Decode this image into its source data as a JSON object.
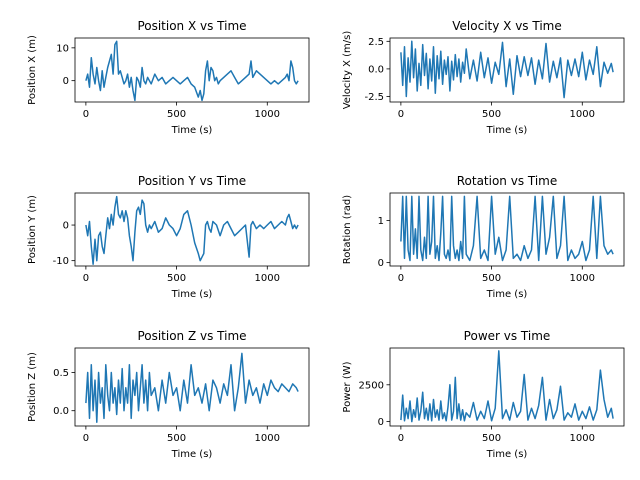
{
  "colors": {
    "line": "#1f77b4",
    "axes": "#000000",
    "background": "#ffffff"
  },
  "chart_data": [
    {
      "type": "line",
      "title": "Position X vs Time",
      "xlabel": "Time (s)",
      "ylabel": "Position X (m)",
      "xlim": [
        -60,
        1230
      ],
      "ylim": [
        -6.5,
        13
      ],
      "xticks": [
        0,
        500,
        1000
      ],
      "yticks": [
        0,
        10
      ],
      "grid": false,
      "legend": "none",
      "series": [
        {
          "x": [
            0,
            10,
            20,
            30,
            40,
            50,
            60,
            70,
            80,
            90,
            100,
            110,
            120,
            130,
            140,
            150,
            160,
            170,
            180,
            190,
            200,
            210,
            220,
            230,
            240,
            250,
            260,
            270,
            280,
            290,
            300,
            310,
            320,
            330,
            340,
            350,
            360,
            380,
            400,
            420,
            440,
            460,
            480,
            500,
            520,
            540,
            560,
            580,
            600,
            620,
            630,
            640,
            650,
            660,
            670,
            680,
            690,
            700,
            710,
            720,
            730,
            740,
            760,
            780,
            800,
            820,
            840,
            860,
            880,
            900,
            910,
            920,
            940,
            960,
            980,
            1000,
            1020,
            1040,
            1060,
            1080,
            1100,
            1110,
            1120,
            1130,
            1140,
            1150,
            1160,
            1170
          ],
          "y": [
            0,
            2,
            -2,
            7,
            2,
            -1,
            4,
            0,
            -3,
            3,
            -2,
            1,
            4,
            6,
            8,
            2,
            11,
            12,
            2,
            3,
            1,
            -1,
            0,
            2,
            -2,
            1,
            -3,
            -6,
            1,
            0,
            -2,
            4,
            0,
            -1,
            1,
            0,
            -1,
            2,
            0,
            1,
            -1,
            0,
            1,
            0,
            -1,
            0,
            1,
            -1,
            -2,
            -5,
            -3,
            -6,
            -4,
            3,
            6,
            0,
            4,
            3,
            0,
            1,
            -1,
            0,
            1,
            2,
            3,
            1,
            -1,
            0,
            1,
            2,
            6,
            1,
            3,
            2,
            1,
            0,
            -1,
            0,
            -1,
            0,
            1,
            2,
            0,
            6,
            4,
            0,
            -1,
            0
          ]
        }
      ]
    },
    {
      "type": "line",
      "title": "Velocity X vs Time",
      "xlabel": "Time (s)",
      "ylabel": "Velocity X (m/s)",
      "xlim": [
        -60,
        1230
      ],
      "ylim": [
        -3,
        2.8
      ],
      "xticks": [
        0,
        500,
        1000
      ],
      "yticks": [
        -2.5,
        0.0,
        2.5
      ],
      "grid": false,
      "legend": "none",
      "series": [
        {
          "x": [
            0,
            10,
            20,
            30,
            40,
            50,
            60,
            70,
            80,
            90,
            100,
            110,
            120,
            130,
            140,
            150,
            160,
            170,
            180,
            190,
            200,
            210,
            220,
            230,
            240,
            250,
            260,
            270,
            280,
            290,
            300,
            310,
            320,
            330,
            340,
            350,
            360,
            380,
            400,
            420,
            440,
            460,
            480,
            500,
            520,
            540,
            560,
            580,
            600,
            620,
            640,
            660,
            680,
            700,
            720,
            740,
            760,
            780,
            800,
            820,
            840,
            860,
            880,
            900,
            920,
            940,
            960,
            980,
            1000,
            1020,
            1040,
            1060,
            1080,
            1100,
            1120,
            1140,
            1160,
            1170
          ],
          "y": [
            1.5,
            -1.5,
            2.0,
            -2.5,
            1.0,
            -1.2,
            2.5,
            -0.8,
            1.8,
            -2.0,
            0.5,
            -1.5,
            2.2,
            -0.6,
            1.4,
            -1.8,
            0.9,
            -1.1,
            2.0,
            -2.2,
            1.2,
            -0.9,
            1.6,
            -1.4,
            0.8,
            -0.5,
            1.1,
            -2.0,
            0.7,
            -1.0,
            1.3,
            -0.7,
            0.9,
            -1.2,
            0.6,
            -0.4,
            1.8,
            -0.9,
            0.8,
            -1.1,
            1.5,
            -0.8,
            1.0,
            -1.3,
            0.6,
            -0.5,
            2.4,
            -1.6,
            0.9,
            -2.3,
            1.2,
            -0.7,
            1.1,
            -0.6,
            1.0,
            -1.4,
            0.8,
            -0.9,
            2.3,
            -1.2,
            0.7,
            -0.8,
            1.0,
            -2.6,
            0.8,
            -0.6,
            0.9,
            -0.7,
            1.5,
            -1.0,
            0.8,
            -0.5,
            2.0,
            -1.6,
            0.6,
            -0.4,
            0.5,
            -0.3
          ]
        }
      ]
    },
    {
      "type": "line",
      "title": "Position Y vs Time",
      "xlabel": "Time (s)",
      "ylabel": "Position Y (m)",
      "xlim": [
        -60,
        1230
      ],
      "ylim": [
        -11.5,
        9
      ],
      "xticks": [
        0,
        500,
        1000
      ],
      "yticks": [
        -10,
        0
      ],
      "grid": false,
      "legend": "none",
      "series": [
        {
          "x": [
            0,
            10,
            20,
            30,
            40,
            50,
            60,
            70,
            80,
            90,
            100,
            110,
            120,
            130,
            140,
            150,
            160,
            170,
            180,
            190,
            200,
            210,
            220,
            230,
            240,
            250,
            260,
            270,
            280,
            290,
            300,
            310,
            320,
            330,
            340,
            350,
            360,
            380,
            400,
            420,
            440,
            460,
            480,
            500,
            520,
            540,
            560,
            580,
            600,
            620,
            630,
            640,
            650,
            660,
            670,
            680,
            690,
            700,
            720,
            740,
            760,
            780,
            800,
            820,
            840,
            860,
            880,
            900,
            910,
            920,
            940,
            960,
            980,
            1000,
            1020,
            1040,
            1060,
            1080,
            1100,
            1110,
            1120,
            1130,
            1140,
            1150,
            1160,
            1170
          ],
          "y": [
            0,
            -3,
            1,
            -6,
            -11,
            -4,
            -10,
            -3,
            -2,
            -6,
            -8,
            -3,
            2,
            -1,
            3,
            0,
            5,
            8,
            3,
            2,
            4,
            1,
            4,
            2,
            -3,
            -6,
            -10,
            -2,
            4,
            5,
            3,
            7,
            6,
            0,
            -2,
            0,
            -1,
            1,
            -2,
            -1,
            2,
            0,
            -1,
            -3,
            -1,
            3,
            4,
            0,
            -5,
            -8,
            -10,
            -9,
            -8,
            0,
            1,
            -1,
            -2,
            1,
            0,
            -3,
            0,
            1,
            -1,
            -3,
            -2,
            -1,
            0,
            -9,
            0,
            1,
            -1,
            0,
            -1,
            0,
            1,
            -1,
            0,
            1,
            0,
            2,
            3,
            1,
            -1,
            0,
            -1,
            0
          ]
        }
      ]
    },
    {
      "type": "line",
      "title": "Rotation vs Time",
      "xlabel": "Time (s)",
      "ylabel": "Rotation (rad)",
      "xlim": [
        -60,
        1230
      ],
      "ylim": [
        -0.08,
        1.65
      ],
      "xticks": [
        0,
        500,
        1000
      ],
      "yticks": [
        0,
        1
      ],
      "grid": false,
      "legend": "none",
      "series": [
        {
          "x": [
            0,
            10,
            20,
            30,
            40,
            50,
            60,
            70,
            80,
            90,
            100,
            110,
            120,
            130,
            140,
            150,
            160,
            170,
            180,
            190,
            200,
            210,
            220,
            230,
            240,
            250,
            260,
            270,
            280,
            290,
            300,
            310,
            320,
            330,
            340,
            350,
            360,
            380,
            400,
            420,
            440,
            460,
            480,
            500,
            520,
            540,
            560,
            580,
            600,
            620,
            640,
            660,
            680,
            700,
            720,
            740,
            760,
            780,
            800,
            820,
            840,
            860,
            880,
            900,
            920,
            940,
            960,
            980,
            1000,
            1020,
            1040,
            1060,
            1080,
            1100,
            1120,
            1140,
            1160,
            1170
          ],
          "y": [
            0.5,
            1.57,
            0.1,
            1.57,
            0.3,
            0.05,
            1.57,
            0.2,
            0.8,
            0.1,
            1.57,
            0.3,
            0.05,
            0.6,
            0.1,
            1.57,
            0.2,
            0.5,
            1.57,
            0.1,
            0.4,
            0.05,
            0.7,
            1.57,
            0.2,
            0.1,
            0.3,
            0.05,
            1.57,
            0.4,
            0.1,
            0.3,
            0.05,
            0.5,
            0.1,
            1.57,
            0.2,
            0.05,
            0.4,
            1.57,
            0.1,
            0.3,
            0.05,
            1.57,
            0.2,
            0.6,
            0.05,
            0.3,
            1.57,
            0.1,
            0.2,
            0.05,
            0.4,
            0.1,
            0.3,
            1.57,
            0.05,
            1.57,
            0.2,
            0.6,
            1.57,
            0.1,
            0.4,
            1.57,
            0.05,
            0.3,
            0.1,
            0.2,
            0.5,
            0.05,
            0.3,
            1.57,
            0.1,
            1.57,
            0.4,
            0.2,
            0.3,
            0.2
          ]
        }
      ]
    },
    {
      "type": "line",
      "title": "Position Z vs Time",
      "xlabel": "Time (s)",
      "ylabel": "Position Z (m)",
      "xlim": [
        -60,
        1230
      ],
      "ylim": [
        -0.2,
        0.82
      ],
      "xticks": [
        0,
        500,
        1000
      ],
      "yticks": [
        0.0,
        0.5
      ],
      "grid": false,
      "legend": "none",
      "series": [
        {
          "x": [
            0,
            10,
            20,
            30,
            40,
            50,
            60,
            70,
            80,
            90,
            100,
            110,
            120,
            130,
            140,
            150,
            160,
            170,
            180,
            190,
            200,
            210,
            220,
            230,
            240,
            250,
            260,
            270,
            280,
            290,
            300,
            310,
            320,
            330,
            340,
            350,
            360,
            380,
            400,
            420,
            440,
            460,
            480,
            500,
            520,
            540,
            560,
            580,
            600,
            620,
            640,
            660,
            680,
            700,
            720,
            740,
            760,
            780,
            800,
            820,
            840,
            860,
            880,
            900,
            920,
            940,
            960,
            980,
            1000,
            1020,
            1040,
            1060,
            1080,
            1100,
            1120,
            1140,
            1160,
            1170
          ],
          "y": [
            0.1,
            0.5,
            -0.1,
            0.6,
            0.0,
            0.4,
            -0.15,
            0.5,
            0.1,
            0.3,
            -0.1,
            0.6,
            0.2,
            0.0,
            0.5,
            0.1,
            0.3,
            -0.05,
            0.4,
            0.1,
            0.55,
            0.0,
            0.3,
            0.1,
            0.6,
            -0.1,
            0.4,
            0.2,
            0.5,
            0.0,
            0.3,
            0.6,
            0.1,
            0.4,
            0.0,
            0.5,
            0.2,
            0.3,
            0.0,
            0.4,
            0.1,
            0.5,
            0.2,
            0.3,
            0.0,
            0.4,
            0.1,
            0.6,
            0.2,
            0.3,
            0.1,
            0.35,
            0.0,
            0.4,
            0.3,
            0.1,
            0.35,
            0.2,
            0.6,
            0.0,
            0.3,
            0.75,
            0.1,
            0.4,
            0.2,
            0.3,
            0.1,
            0.35,
            0.2,
            0.4,
            0.3,
            0.25,
            0.35,
            0.3,
            0.25,
            0.35,
            0.3,
            0.25
          ]
        }
      ]
    },
    {
      "type": "line",
      "title": "Power vs Time",
      "xlabel": "Time (s)",
      "ylabel": "Power (W)",
      "xlim": [
        -60,
        1230
      ],
      "ylim": [
        -300,
        5000
      ],
      "xticks": [
        0,
        500,
        1000
      ],
      "yticks": [
        0,
        2500
      ],
      "grid": false,
      "legend": "none",
      "series": [
        {
          "x": [
            0,
            10,
            20,
            30,
            40,
            50,
            60,
            70,
            80,
            90,
            100,
            110,
            120,
            130,
            140,
            150,
            160,
            170,
            180,
            190,
            200,
            210,
            220,
            230,
            240,
            250,
            260,
            270,
            280,
            290,
            300,
            310,
            320,
            330,
            340,
            350,
            360,
            380,
            400,
            420,
            440,
            460,
            480,
            500,
            520,
            540,
            560,
            580,
            600,
            620,
            640,
            660,
            680,
            700,
            720,
            740,
            760,
            780,
            800,
            820,
            840,
            860,
            880,
            900,
            920,
            940,
            960,
            980,
            1000,
            1020,
            1040,
            1060,
            1080,
            1100,
            1120,
            1140,
            1160,
            1170
          ],
          "y": [
            100,
            1800,
            50,
            900,
            200,
            1400,
            0,
            800,
            300,
            1600,
            100,
            700,
            2000,
            200,
            900,
            100,
            1200,
            50,
            1500,
            300,
            800,
            100,
            1400,
            200,
            600,
            50,
            1000,
            2500,
            100,
            700,
            3000,
            200,
            1200,
            100,
            800,
            50,
            600,
            300,
            1300,
            100,
            700,
            200,
            1400,
            50,
            900,
            4800,
            200,
            800,
            100,
            1300,
            300,
            700,
            3200,
            100,
            900,
            200,
            1100,
            3000,
            100,
            1500,
            200,
            800,
            2400,
            100,
            600,
            300,
            1200,
            100,
            700,
            200,
            1000,
            100,
            800,
            3500,
            1500,
            300,
            900,
            200
          ]
        }
      ]
    }
  ]
}
